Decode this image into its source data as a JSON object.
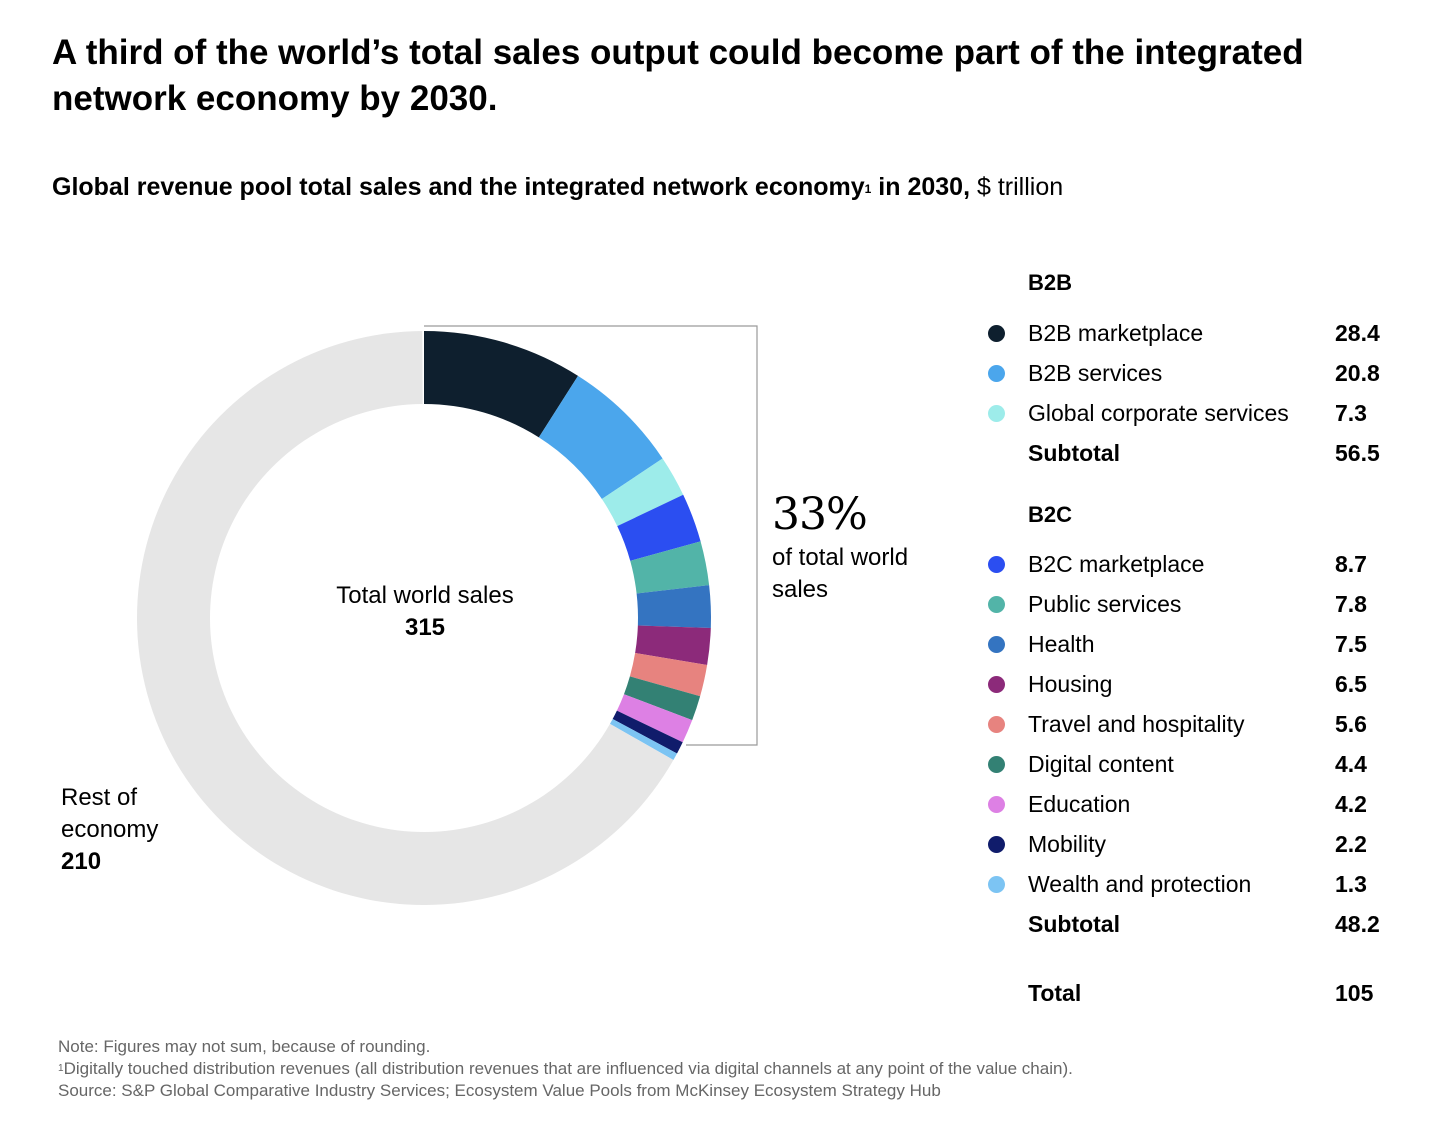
{
  "title": "A third of the world’s total sales output could become part of the integrated network economy by 2030.",
  "subtitle": {
    "bold": "Global revenue pool total sales and the integrated network economy",
    "footnote_mark": "1",
    "bold_suffix": " in 2030,",
    "unit": " $ trillion"
  },
  "center": {
    "label": "Total world sales",
    "value": "315"
  },
  "rest": {
    "label": "Rest of economy",
    "value": "210"
  },
  "callout": {
    "percent": "33%",
    "text": "of total world sales"
  },
  "legend": {
    "b2b_title": "B2B",
    "b2c_title": "B2C",
    "b2b": [
      {
        "name": "B2B marketplace",
        "value": "28.4",
        "color": "#0e1f2e"
      },
      {
        "name": "B2B services",
        "value": "20.8",
        "color": "#4ba6ec"
      },
      {
        "name": "Global corporate services",
        "value": "7.3",
        "color": "#9decea"
      }
    ],
    "b2b_subtotal": {
      "name": "Subtotal",
      "value": "56.5"
    },
    "b2c": [
      {
        "name": "B2C marketplace",
        "value": "8.7",
        "color": "#2b4ef1"
      },
      {
        "name": "Public services",
        "value": "7.8",
        "color": "#52b4a8"
      },
      {
        "name": "Health",
        "value": "7.5",
        "color": "#3474c1"
      },
      {
        "name": "Housing",
        "value": "6.5",
        "color": "#8c2a7a"
      },
      {
        "name": "Travel and hospitality",
        "value": "5.6",
        "color": "#e7837f"
      },
      {
        "name": "Digital content",
        "value": "4.4",
        "color": "#338174"
      },
      {
        "name": "Education",
        "value": "4.2",
        "color": "#dd80e4"
      },
      {
        "name": "Mobility",
        "value": "2.2",
        "color": "#101c6b"
      },
      {
        "name": "Wealth and protection",
        "value": "1.3",
        "color": "#7cc4f3"
      }
    ],
    "b2c_subtotal": {
      "name": "Subtotal",
      "value": "48.2"
    },
    "total": {
      "name": "Total",
      "value": "105"
    }
  },
  "notes": {
    "note": "Note: Figures may not sum, because of rounding.",
    "footnote_mark": "1",
    "footnote": "Digitally touched distribution revenues (all distribution revenues that are influenced via digital channels at any point of the value chain).",
    "source": "Source: S&P Global Comparative Industry Services; Ecosystem Value Pools from McKinsey Ecosystem Strategy Hub"
  },
  "chart_data": {
    "type": "pie",
    "subtype": "donut",
    "title": "Global revenue pool total sales and the integrated network economy in 2030, $ trillion",
    "total": 315,
    "rest_color": "#e6e6e6",
    "slices": [
      {
        "name": "B2B marketplace",
        "value": 28.4,
        "color": "#0e1f2e"
      },
      {
        "name": "B2B services",
        "value": 20.8,
        "color": "#4ba6ec"
      },
      {
        "name": "Global corporate services",
        "value": 7.3,
        "color": "#9decea"
      },
      {
        "name": "B2C marketplace",
        "value": 8.7,
        "color": "#2b4ef1"
      },
      {
        "name": "Public services",
        "value": 7.8,
        "color": "#52b4a8"
      },
      {
        "name": "Health",
        "value": 7.5,
        "color": "#3474c1"
      },
      {
        "name": "Housing",
        "value": 6.5,
        "color": "#8c2a7a"
      },
      {
        "name": "Travel and hospitality",
        "value": 5.6,
        "color": "#e7837f"
      },
      {
        "name": "Digital content",
        "value": 4.4,
        "color": "#338174"
      },
      {
        "name": "Education",
        "value": 4.2,
        "color": "#dd80e4"
      },
      {
        "name": "Mobility",
        "value": 2.2,
        "color": "#101c6b"
      },
      {
        "name": "Wealth and protection",
        "value": 1.3,
        "color": "#7cc4f3"
      },
      {
        "name": "Rest of economy",
        "value": 210,
        "color": "#e6e6e6"
      }
    ]
  }
}
